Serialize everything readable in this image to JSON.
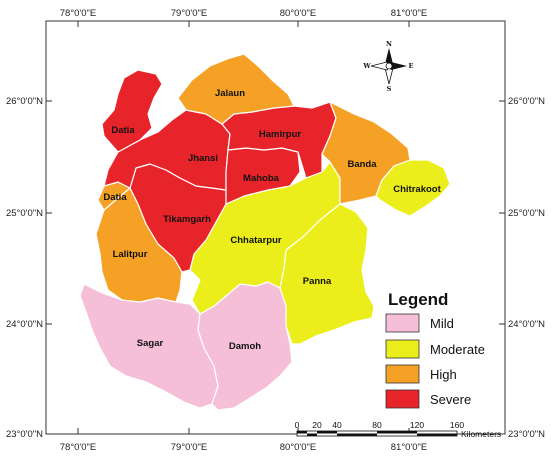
{
  "colors": {
    "mild": "#f6bfd8",
    "moderate": "#ecee1c",
    "high": "#f5a126",
    "severe": "#e8242b",
    "frame": "#333333"
  },
  "graticule": {
    "lon_labels": [
      "78°0'0\"E",
      "79°0'0\"E",
      "80°0'0\"E",
      "81°0'0\"E"
    ],
    "lat_labels": [
      "26°0'0\"N",
      "25°0'0\"N",
      "24°0'0\"N",
      "23°0'0\"N"
    ]
  },
  "districts": {
    "jalaun": {
      "name": "Jalaun",
      "category": "high"
    },
    "datia_north": {
      "name": "Datia",
      "category": "severe"
    },
    "datia_west": {
      "name": "Datia",
      "category": "high"
    },
    "jhansi": {
      "name": "Jhansi",
      "category": "severe"
    },
    "hamirpur": {
      "name": "Hamirpur",
      "category": "severe"
    },
    "mahoba": {
      "name": "Mahoba",
      "category": "severe"
    },
    "banda": {
      "name": "Banda",
      "category": "high"
    },
    "chitrakoot": {
      "name": "Chitrakoot",
      "category": "moderate"
    },
    "tikamgarh": {
      "name": "Tikamgarh",
      "category": "severe"
    },
    "lalitpur": {
      "name": "Lalitpur",
      "category": "high"
    },
    "chhatarpur": {
      "name": "Chhatarpur",
      "category": "moderate"
    },
    "panna": {
      "name": "Panna",
      "category": "moderate"
    },
    "sagar": {
      "name": "Sagar",
      "category": "mild"
    },
    "damoh": {
      "name": "Damoh",
      "category": "mild"
    }
  },
  "legend": {
    "title": "Legend",
    "items": [
      {
        "label": "Mild",
        "category": "mild"
      },
      {
        "label": "Moderate",
        "category": "moderate"
      },
      {
        "label": "High",
        "category": "high"
      },
      {
        "label": "Severe",
        "category": "severe"
      }
    ]
  },
  "scale_bar": {
    "ticks": [
      "0",
      "20",
      "40",
      "80",
      "120",
      "160"
    ],
    "unit": "Kilometers"
  },
  "north_arrow": {
    "n": "N",
    "s": "S",
    "e": "E",
    "w": "W"
  }
}
